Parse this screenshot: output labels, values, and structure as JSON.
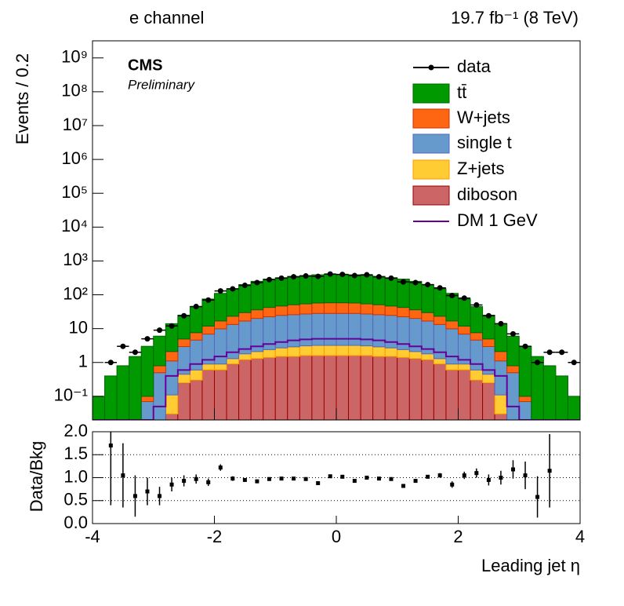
{
  "chart_data": [
    {
      "type": "histogram",
      "title": "e channel",
      "subtitle": "19.7 fb⁻¹ (8 TeV)",
      "annotations": [
        "CMS",
        "Preliminary"
      ],
      "ylabel": "Events / 0.2",
      "log_scale_y": true,
      "stacked": true,
      "xlim": [
        -4,
        4
      ],
      "ylim": [
        0.02,
        3200000000
      ],
      "yticks": [
        {
          "value": 1000000000,
          "label": "10⁹"
        },
        {
          "value": 100000000,
          "label": "10⁸"
        },
        {
          "value": 10000000,
          "label": "10⁷"
        },
        {
          "value": 1000000,
          "label": "10⁶"
        },
        {
          "value": 100000,
          "label": "10⁵"
        },
        {
          "value": 10000,
          "label": "10⁴"
        },
        {
          "value": 1000,
          "label": "10³"
        },
        {
          "value": 100,
          "label": "10²"
        },
        10,
        1,
        {
          "value": 0.1,
          "label": "10⁻¹"
        }
      ],
      "bins": [
        -4,
        -3.8,
        -3.6,
        -3.4,
        -3.2,
        -3,
        -2.8,
        -2.6,
        -2.4,
        -2.2,
        -2,
        -1.8,
        -1.6,
        -1.4,
        -1.2,
        -1,
        -0.8,
        -0.6,
        -0.4,
        -0.2,
        0,
        0.2,
        0.4,
        0.6,
        0.8,
        1,
        1.2,
        1.4,
        1.6,
        1.8,
        2,
        2.2,
        2.4,
        2.6,
        2.8,
        3,
        3.2,
        3.4,
        3.6,
        3.8,
        4
      ],
      "data": {
        "name": "data",
        "color": "#000000",
        "x": [
          -3.7,
          -3.5,
          -3.3,
          -3.1,
          -2.9,
          -2.7,
          -2.5,
          -2.3,
          -2.1,
          -1.9,
          -1.7,
          -1.5,
          -1.3,
          -1.1,
          -0.9,
          -0.7,
          -0.5,
          -0.3,
          -0.1,
          0.1,
          0.3,
          0.5,
          0.7,
          0.9,
          1.1,
          1.3,
          1.5,
          1.7,
          1.9,
          2.1,
          2.3,
          2.5,
          2.7,
          2.9,
          3.1,
          3.3,
          3.5,
          3.7,
          3.9
        ],
        "values": [
          1,
          3,
          2,
          5,
          9,
          12,
          24,
          45,
          70,
          130,
          150,
          190,
          230,
          280,
          310,
          340,
          360,
          350,
          410,
          400,
          370,
          390,
          340,
          310,
          240,
          230,
          200,
          160,
          95,
          80,
          50,
          24,
          14,
          7,
          3,
          1,
          2,
          2,
          1
        ]
      },
      "series": [
        {
          "name": "tt̄",
          "color": "#009900",
          "edge": "#006600",
          "values": [
            0.1,
            0.4,
            0.8,
            1.5,
            2.9,
            5.2,
            11.9,
            20,
            37,
            63,
            93,
            127,
            170,
            214,
            248,
            273,
            299,
            316,
            333,
            342,
            342,
            333,
            316,
            299,
            273,
            248,
            214,
            170,
            127,
            93,
            63,
            37,
            20,
            11.9,
            5.2,
            2.9,
            1.5,
            0.8,
            0.4,
            0.1
          ]
        },
        {
          "name": "W+jets",
          "color": "#ff6611",
          "edge": "#cc3300",
          "values": [
            0,
            0,
            0,
            0,
            0.03,
            0.3,
            1,
            2,
            3,
            5,
            7,
            10,
            13,
            16,
            20,
            22,
            25,
            27,
            29,
            30,
            30,
            29,
            27,
            25,
            22,
            20,
            16,
            13,
            10,
            7,
            5,
            3,
            2,
            1,
            0.3,
            0.03,
            0,
            0,
            0,
            0
          ]
        },
        {
          "name": "single t",
          "color": "#6699cc",
          "edge": "#5566bb",
          "values": [
            0,
            0,
            0,
            0,
            0.07,
            0.5,
            1,
            2.5,
            4,
            6,
            9,
            12,
            15,
            18,
            20,
            22,
            23,
            24,
            25,
            25,
            25,
            25,
            24,
            23,
            22,
            20,
            18,
            15,
            12,
            9,
            6,
            4,
            2.5,
            1,
            0.5,
            0.07,
            0,
            0,
            0,
            0
          ]
        },
        {
          "name": "Z+jets",
          "color": "#ffcc33",
          "edge": "#ff9900",
          "values": [
            0,
            0,
            0,
            0,
            0,
            0,
            0.08,
            0.2,
            0.3,
            0.3,
            0.3,
            0.4,
            0.6,
            0.8,
            1,
            1.2,
            1.4,
            1.5,
            1.6,
            1.6,
            1.6,
            1.6,
            1.5,
            1.4,
            1.2,
            1,
            0.8,
            0.6,
            0.4,
            0.3,
            0.3,
            0.3,
            0.2,
            0.08,
            0,
            0,
            0,
            0,
            0,
            0
          ]
        },
        {
          "name": "diboson",
          "color": "#cc6666",
          "edge": "#990000",
          "values": [
            0,
            0,
            0,
            0,
            0,
            0,
            0.03,
            0.25,
            0.3,
            0.6,
            0.6,
            0.9,
            1.2,
            1.3,
            1.4,
            1.5,
            1.5,
            1.6,
            1.6,
            1.6,
            1.6,
            1.6,
            1.6,
            1.5,
            1.5,
            1.4,
            1.3,
            1.2,
            0.9,
            0.6,
            0.6,
            0.3,
            0.25,
            0.03,
            0,
            0,
            0,
            0,
            0,
            0
          ]
        }
      ],
      "overlay": {
        "name": "DM 1 GeV",
        "color": "#660099",
        "values": [
          0.02,
          0.02,
          0.02,
          0.02,
          0.02,
          0.05,
          0.4,
          0.6,
          0.9,
          1.2,
          1.5,
          2,
          2.5,
          3,
          3.5,
          4,
          4.5,
          4.8,
          5,
          5,
          5,
          5,
          4.8,
          4.5,
          4,
          3.5,
          3,
          2.5,
          2,
          1.5,
          1.2,
          0.9,
          0.6,
          0.4,
          0.05,
          0.02,
          0.02,
          0.02,
          0.02,
          0.02
        ]
      }
    },
    {
      "type": "errorbar",
      "xlabel": "Leading jet η",
      "ylabel": "Data/Bkg",
      "xlim": [
        -4,
        4
      ],
      "ylim": [
        0,
        2
      ],
      "xticks": [
        -4,
        -2,
        0,
        2,
        4
      ],
      "yticks": [
        {
          "value": 0,
          "label": "0.0"
        },
        {
          "value": 0.5,
          "label": "0.5"
        },
        {
          "value": 1,
          "label": "1.0"
        },
        {
          "value": 1.5,
          "label": "1.5"
        },
        {
          "value": 2,
          "label": "2.0"
        }
      ],
      "grid": true,
      "color": "#000000",
      "x": [
        -3.7,
        -3.5,
        -3.3,
        -3.1,
        -2.9,
        -2.7,
        -2.5,
        -2.3,
        -2.1,
        -1.9,
        -1.7,
        -1.5,
        -1.3,
        -1.1,
        -0.9,
        -0.7,
        -0.5,
        -0.3,
        -0.1,
        0.1,
        0.3,
        0.5,
        0.7,
        0.9,
        1.1,
        1.3,
        1.5,
        1.7,
        1.9,
        2.1,
        2.3,
        2.5,
        2.7,
        2.9,
        3.1,
        3.3,
        3.5
      ],
      "values": [
        1.7,
        1.05,
        0.6,
        0.7,
        0.6,
        0.85,
        0.93,
        0.97,
        0.9,
        1.22,
        0.98,
        0.95,
        0.92,
        0.97,
        0.98,
        0.98,
        0.97,
        0.88,
        1.03,
        1.02,
        0.93,
        1.0,
        0.98,
        0.97,
        0.82,
        0.93,
        1.02,
        1.05,
        0.85,
        1.05,
        1.1,
        0.95,
        1.0,
        1.18,
        1.05,
        0.58,
        1.15
      ],
      "errors": [
        1.3,
        0.7,
        0.45,
        0.3,
        0.2,
        0.15,
        0.12,
        0.1,
        0.08,
        0.07,
        0.05,
        0.04,
        0.04,
        0.03,
        0.03,
        0.03,
        0.03,
        0.03,
        0.03,
        0.03,
        0.03,
        0.03,
        0.03,
        0.03,
        0.03,
        0.04,
        0.04,
        0.05,
        0.07,
        0.08,
        0.1,
        0.12,
        0.15,
        0.2,
        0.3,
        0.45,
        0.8
      ]
    }
  ]
}
